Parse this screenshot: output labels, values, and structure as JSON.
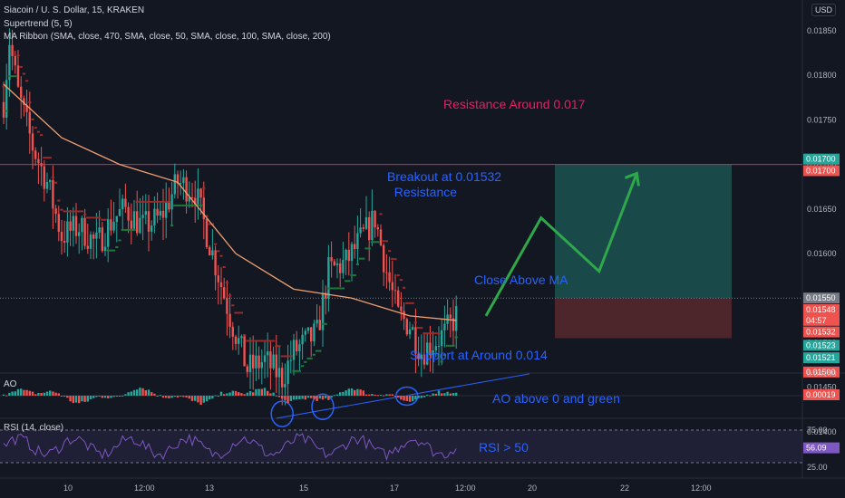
{
  "header": {
    "title": "Siacoin / U. S. Dollar, 15, KRAKEN",
    "indicator_1": "Supertrend (5, 5)",
    "indicator_2": "MA Ribbon (SMA, close, 470, SMA, close, 50, SMA, close, 100, SMA, close, 200)",
    "currency_button": "USD"
  },
  "colors": {
    "background": "#131722",
    "up": "#26a69a",
    "down": "#ef5350",
    "supertrend_up": "#1e7a3a",
    "supertrend_down": "#9e2a2a",
    "ma": "#f0a070",
    "resistance": "#e91e63",
    "arrow": "#2ea84a",
    "annotation_blue": "#2962ff",
    "rsi": "#7e57c2"
  },
  "annotations": {
    "resistance": "Resistance Around 0.017",
    "breakout": "Breakout at 0.01532\n  Resistance",
    "close_above_ma": "Close Above MA",
    "support": "Support at Around 0.014",
    "ao_note": "AO above 0 and green",
    "rsi_note": "RSI > 50"
  },
  "panels": {
    "ao_label": "AO",
    "rsi_label": "RSI (14, close)"
  },
  "price_axis": {
    "ticks": [
      "0.01850",
      "0.01800",
      "0.01750",
      "0.01700",
      "0.01650",
      "0.01600",
      "0.01550",
      "0.01500",
      "0.01450",
      "0.01400"
    ],
    "badges": [
      {
        "text": "0.01700",
        "color": "#26a69a",
        "price": 0.01706
      },
      {
        "text": "0.01700",
        "color": "#ef5350",
        "price": 0.01693
      },
      {
        "text": "0.01550",
        "color": "#787b86",
        "price": 0.0155
      },
      {
        "text": "0.01548",
        "color": "#ef5350",
        "price": 0.01537
      },
      {
        "text": "04:57",
        "color": "#ef5350",
        "price": 0.01525
      },
      {
        "text": "0.01532",
        "color": "#ef5350",
        "price": 0.01512
      },
      {
        "text": "0.01523",
        "color": "#26a69a",
        "price": 0.01497
      },
      {
        "text": "0.01521",
        "color": "#26a69a",
        "price": 0.01483
      },
      {
        "text": "0.01500",
        "color": "#ef5350",
        "price": 0.01467
      }
    ],
    "ao_ticks": [
      "0.00100"
    ],
    "ao_badge": "0.00019",
    "rsi_ticks": [
      "75.00",
      "25.00"
    ],
    "rsi_badge": "56.09"
  },
  "time_axis": [
    "10",
    "12:00",
    "13",
    "15",
    "17",
    "12:00",
    "20",
    "22",
    "12:00"
  ],
  "chart_data": {
    "type": "candlestick",
    "symbol": "Siacoin / U. S. Dollar",
    "interval": "15",
    "exchange": "KRAKEN",
    "ylim": [
      0.0138,
      0.0188
    ],
    "key_levels": {
      "resistance": 0.017,
      "breakout": 0.01532,
      "support": 0.014
    },
    "price_path": [
      {
        "t": 0,
        "p": 0.0177
      },
      {
        "t": 2,
        "p": 0.0184
      },
      {
        "t": 5,
        "p": 0.0178
      },
      {
        "t": 10,
        "p": 0.0172
      },
      {
        "t": 15,
        "p": 0.0168
      },
      {
        "t": 20,
        "p": 0.0162
      },
      {
        "t": 26,
        "p": 0.0163
      },
      {
        "t": 32,
        "p": 0.0161
      },
      {
        "t": 38,
        "p": 0.0164
      },
      {
        "t": 42,
        "p": 0.0165
      },
      {
        "t": 48,
        "p": 0.0163
      },
      {
        "t": 54,
        "p": 0.0164
      },
      {
        "t": 60,
        "p": 0.0168
      },
      {
        "t": 66,
        "p": 0.0167
      },
      {
        "t": 72,
        "p": 0.016
      },
      {
        "t": 78,
        "p": 0.0153
      },
      {
        "t": 84,
        "p": 0.0147
      },
      {
        "t": 90,
        "p": 0.0148
      },
      {
        "t": 96,
        "p": 0.0146
      },
      {
        "t": 100,
        "p": 0.0149
      },
      {
        "t": 104,
        "p": 0.015
      },
      {
        "t": 108,
        "p": 0.0151
      },
      {
        "t": 112,
        "p": 0.0158
      },
      {
        "t": 118,
        "p": 0.0159
      },
      {
        "t": 124,
        "p": 0.0162
      },
      {
        "t": 128,
        "p": 0.0164
      },
      {
        "t": 132,
        "p": 0.0158
      },
      {
        "t": 136,
        "p": 0.0153
      },
      {
        "t": 140,
        "p": 0.0152
      },
      {
        "t": 144,
        "p": 0.0149
      },
      {
        "t": 148,
        "p": 0.015
      },
      {
        "t": 152,
        "p": 0.0151
      },
      {
        "t": 156,
        "p": 0.0153
      }
    ],
    "ma": [
      {
        "t": 0,
        "p": 0.0179
      },
      {
        "t": 20,
        "p": 0.0173
      },
      {
        "t": 40,
        "p": 0.017
      },
      {
        "t": 60,
        "p": 0.0168
      },
      {
        "t": 80,
        "p": 0.016
      },
      {
        "t": 100,
        "p": 0.0156
      },
      {
        "t": 120,
        "p": 0.0155
      },
      {
        "t": 140,
        "p": 0.0153
      },
      {
        "t": 156,
        "p": 0.01525
      }
    ],
    "position_box": {
      "entry": 0.0155,
      "target": 0.017,
      "stop": 0.01505
    },
    "projection": [
      {
        "t": 160,
        "p": 0.0153
      },
      {
        "t": 179,
        "p": 0.0164
      },
      {
        "t": 199,
        "p": 0.0158
      },
      {
        "t": 212,
        "p": 0.0169
      }
    ],
    "trendline": [
      {
        "t": 94,
        "p": 0.01415
      },
      {
        "t": 175,
        "p": 0.01465
      }
    ],
    "support_marks": [
      {
        "t": 96,
        "p": 0.0142
      },
      {
        "t": 110,
        "p": 0.01428
      },
      {
        "t": 139,
        "p": 0.0144
      }
    ],
    "ao_bias": "positive",
    "rsi_last": 56.09,
    "rsi_band": [
      25,
      75
    ]
  }
}
